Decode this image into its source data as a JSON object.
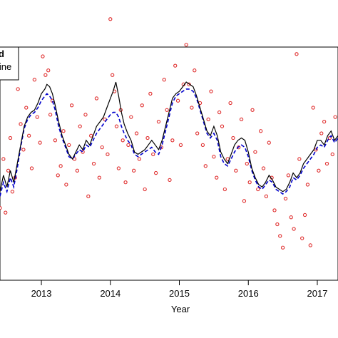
{
  "chart_data": {
    "type": "line",
    "xlabel": "Year",
    "ylabel": "",
    "xlim": [
      2012.4,
      2017.3
    ],
    "ylim": [
      0,
      1
    ],
    "x_ticks": [
      2013,
      2014,
      2015,
      2016,
      2017
    ],
    "x_tick_labels": [
      "2013",
      "2014",
      "2015",
      "2016",
      "2017"
    ],
    "grid": false,
    "legend": {
      "placement": "top-left",
      "entries": [
        {
          "label": "d",
          "style": "line",
          "color": "#000000"
        },
        {
          "label": "line",
          "style": "dashed",
          "color": "#0000cc"
        }
      ]
    },
    "series": [
      {
        "style": "solid",
        "color": "#000000",
        "x": [
          2012.4,
          2012.45,
          2012.5,
          2012.55,
          2012.6,
          2012.65,
          2012.7,
          2012.75,
          2012.8,
          2012.85,
          2012.9,
          2012.95,
          2013.0,
          2013.05,
          2013.08,
          2013.12,
          2013.16,
          2013.2,
          2013.25,
          2013.3,
          2013.35,
          2013.4,
          2013.45,
          2013.5,
          2013.55,
          2013.6,
          2013.65,
          2013.7,
          2013.75,
          2013.8,
          2013.85,
          2013.9,
          2013.95,
          2014.0,
          2014.04,
          2014.08,
          2014.12,
          2014.16,
          2014.2,
          2014.25,
          2014.3,
          2014.35,
          2014.4,
          2014.45,
          2014.5,
          2014.55,
          2014.6,
          2014.65,
          2014.7,
          2014.75,
          2014.8,
          2014.85,
          2014.9,
          2014.95,
          2015.0,
          2015.05,
          2015.1,
          2015.15,
          2015.2,
          2015.25,
          2015.3,
          2015.35,
          2015.4,
          2015.45,
          2015.5,
          2015.55,
          2015.6,
          2015.65,
          2015.7,
          2015.75,
          2015.8,
          2015.85,
          2015.9,
          2015.95,
          2016.0,
          2016.05,
          2016.1,
          2016.15,
          2016.2,
          2016.25,
          2016.3,
          2016.35,
          2016.4,
          2016.45,
          2016.5,
          2016.55,
          2016.6,
          2016.65,
          2016.7,
          2016.75,
          2016.8,
          2016.85,
          2016.9,
          2016.95,
          2017.0,
          2017.05,
          2017.1,
          2017.15,
          2017.2,
          2017.25,
          2017.3
        ],
        "y": [
          0.38,
          0.45,
          0.4,
          0.47,
          0.42,
          0.5,
          0.58,
          0.66,
          0.7,
          0.72,
          0.73,
          0.76,
          0.8,
          0.82,
          0.84,
          0.83,
          0.8,
          0.75,
          0.68,
          0.62,
          0.58,
          0.54,
          0.52,
          0.55,
          0.58,
          0.56,
          0.6,
          0.58,
          0.62,
          0.66,
          0.68,
          0.7,
          0.74,
          0.78,
          0.81,
          0.85,
          0.79,
          0.72,
          0.67,
          0.63,
          0.6,
          0.55,
          0.54,
          0.55,
          0.56,
          0.58,
          0.6,
          0.58,
          0.56,
          0.6,
          0.66,
          0.72,
          0.78,
          0.8,
          0.81,
          0.83,
          0.85,
          0.84,
          0.83,
          0.79,
          0.74,
          0.69,
          0.64,
          0.62,
          0.66,
          0.62,
          0.55,
          0.52,
          0.5,
          0.54,
          0.58,
          0.6,
          0.61,
          0.6,
          0.55,
          0.48,
          0.44,
          0.41,
          0.4,
          0.42,
          0.45,
          0.43,
          0.4,
          0.39,
          0.38,
          0.39,
          0.42,
          0.46,
          0.44,
          0.46,
          0.5,
          0.52,
          0.54,
          0.56,
          0.6,
          0.6,
          0.58,
          0.62,
          0.64,
          0.6,
          0.62
        ]
      },
      {
        "style": "dashed",
        "color": "#0000cc",
        "x": [
          2012.4,
          2012.45,
          2012.5,
          2012.55,
          2012.6,
          2012.65,
          2012.7,
          2012.75,
          2012.8,
          2012.85,
          2012.9,
          2012.95,
          2013.0,
          2013.05,
          2013.08,
          2013.12,
          2013.16,
          2013.2,
          2013.25,
          2013.3,
          2013.35,
          2013.4,
          2013.45,
          2013.5,
          2013.55,
          2013.6,
          2013.65,
          2013.7,
          2013.75,
          2013.8,
          2013.85,
          2013.9,
          2013.95,
          2014.0,
          2014.04,
          2014.08,
          2014.12,
          2014.16,
          2014.2,
          2014.25,
          2014.3,
          2014.35,
          2014.4,
          2014.45,
          2014.5,
          2014.55,
          2014.6,
          2014.65,
          2014.7,
          2014.75,
          2014.8,
          2014.85,
          2014.9,
          2014.95,
          2015.0,
          2015.05,
          2015.1,
          2015.15,
          2015.2,
          2015.25,
          2015.3,
          2015.35,
          2015.4,
          2015.45,
          2015.5,
          2015.55,
          2015.6,
          2015.65,
          2015.7,
          2015.75,
          2015.8,
          2015.85,
          2015.9,
          2015.95,
          2016.0,
          2016.05,
          2016.1,
          2016.15,
          2016.2,
          2016.25,
          2016.3,
          2016.35,
          2016.4,
          2016.45,
          2016.5,
          2016.55,
          2016.6,
          2016.65,
          2016.7,
          2016.75,
          2016.8,
          2016.85,
          2016.9,
          2016.95,
          2017.0,
          2017.05,
          2017.1,
          2017.15,
          2017.2,
          2017.25,
          2017.3
        ],
        "y": [
          0.36,
          0.42,
          0.38,
          0.44,
          0.4,
          0.48,
          0.57,
          0.65,
          0.69,
          0.71,
          0.72,
          0.74,
          0.77,
          0.79,
          0.8,
          0.79,
          0.77,
          0.73,
          0.66,
          0.61,
          0.57,
          0.53,
          0.52,
          0.54,
          0.56,
          0.55,
          0.58,
          0.57,
          0.6,
          0.63,
          0.65,
          0.67,
          0.69,
          0.71,
          0.72,
          0.72,
          0.7,
          0.66,
          0.63,
          0.6,
          0.58,
          0.54,
          0.53,
          0.54,
          0.55,
          0.56,
          0.57,
          0.55,
          0.54,
          0.58,
          0.64,
          0.7,
          0.76,
          0.79,
          0.8,
          0.81,
          0.82,
          0.82,
          0.81,
          0.78,
          0.73,
          0.68,
          0.63,
          0.61,
          0.63,
          0.6,
          0.53,
          0.5,
          0.49,
          0.52,
          0.55,
          0.57,
          0.58,
          0.57,
          0.53,
          0.47,
          0.43,
          0.4,
          0.39,
          0.41,
          0.43,
          0.42,
          0.39,
          0.38,
          0.37,
          0.38,
          0.4,
          0.44,
          0.43,
          0.45,
          0.48,
          0.5,
          0.52,
          0.54,
          0.57,
          0.58,
          0.57,
          0.6,
          0.62,
          0.59,
          0.61
        ]
      },
      {
        "style": "points",
        "color": "#e03030",
        "x": [
          2012.4,
          2012.45,
          2012.48,
          2012.52,
          2012.55,
          2012.58,
          2012.62,
          2012.66,
          2012.7,
          2012.74,
          2012.78,
          2012.82,
          2012.86,
          2012.9,
          2012.94,
          2012.98,
          2013.02,
          2013.06,
          2013.1,
          2013.13,
          2013.16,
          2013.2,
          2013.24,
          2013.28,
          2013.32,
          2013.36,
          2013.4,
          2013.44,
          2013.48,
          2013.52,
          2013.56,
          2013.6,
          2013.64,
          2013.68,
          2013.72,
          2013.76,
          2013.8,
          2013.84,
          2013.88,
          2013.92,
          2013.96,
          2014.0,
          2014.03,
          2014.06,
          2014.09,
          2014.12,
          2014.15,
          2014.18,
          2014.22,
          2014.26,
          2014.3,
          2014.34,
          2014.38,
          2014.42,
          2014.46,
          2014.5,
          2014.54,
          2014.58,
          2014.62,
          2014.66,
          2014.7,
          2014.74,
          2014.78,
          2014.82,
          2014.86,
          2014.9,
          2014.94,
          2014.98,
          2015.02,
          2015.06,
          2015.1,
          2015.14,
          2015.18,
          2015.22,
          2015.26,
          2015.3,
          2015.34,
          2015.38,
          2015.42,
          2015.46,
          2015.5,
          2015.54,
          2015.58,
          2015.62,
          2015.66,
          2015.7,
          2015.74,
          2015.78,
          2015.82,
          2015.86,
          2015.9,
          2015.94,
          2015.98,
          2016.02,
          2016.06,
          2016.1,
          2016.14,
          2016.18,
          2016.22,
          2016.26,
          2016.3,
          2016.34,
          2016.38,
          2016.42,
          2016.46,
          2016.5,
          2016.54,
          2016.58,
          2016.62,
          2016.66,
          2016.7,
          2016.74,
          2016.78,
          2016.82,
          2016.86,
          2016.9,
          2016.94,
          2016.98,
          2017.02,
          2017.06,
          2017.1,
          2017.14,
          2017.18,
          2017.22,
          2017.26
        ],
        "y": [
          0.31,
          0.52,
          0.29,
          0.47,
          0.61,
          0.38,
          0.44,
          0.82,
          0.67,
          0.56,
          0.74,
          0.62,
          0.48,
          0.86,
          0.7,
          0.59,
          0.96,
          0.88,
          0.9,
          0.71,
          0.77,
          0.6,
          0.45,
          0.49,
          0.64,
          0.41,
          0.58,
          0.75,
          0.52,
          0.47,
          0.66,
          0.55,
          0.71,
          0.36,
          0.62,
          0.5,
          0.78,
          0.44,
          0.57,
          0.69,
          0.54,
          1.12,
          0.88,
          0.81,
          0.66,
          0.48,
          0.73,
          0.6,
          0.42,
          0.58,
          0.7,
          0.47,
          0.63,
          0.52,
          0.75,
          0.39,
          0.61,
          0.8,
          0.54,
          0.46,
          0.68,
          0.57,
          0.86,
          0.73,
          0.43,
          0.6,
          0.92,
          0.77,
          0.58,
          0.84,
          1.01,
          0.84,
          0.74,
          0.9,
          0.63,
          0.76,
          0.58,
          0.49,
          0.69,
          0.81,
          0.53,
          0.44,
          0.72,
          0.66,
          0.39,
          0.52,
          0.76,
          0.61,
          0.47,
          0.57,
          0.69,
          0.34,
          0.5,
          0.42,
          0.73,
          0.55,
          0.39,
          0.64,
          0.48,
          0.36,
          0.59,
          0.44,
          0.3,
          0.24,
          0.19,
          0.14,
          0.35,
          0.45,
          0.27,
          0.22,
          0.97,
          0.52,
          0.18,
          0.28,
          0.41,
          0.15,
          0.74,
          0.56,
          0.47,
          0.63,
          0.68,
          0.5,
          0.61,
          0.54,
          0.7
        ]
      }
    ]
  }
}
